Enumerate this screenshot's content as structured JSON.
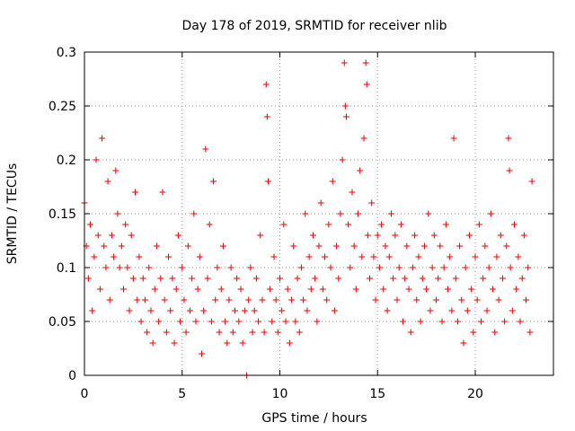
{
  "chart_data": {
    "type": "scatter",
    "title": "Day 178 of 2019, SRMTID for receiver nlib",
    "xlabel": "GPS time / hours",
    "ylabel": "SRMTID / TECUs",
    "xlim": [
      0,
      24
    ],
    "ylim": [
      0,
      0.3
    ],
    "x_ticks": [
      0,
      5,
      10,
      15,
      20
    ],
    "x_tick_labels": [
      "0",
      "5",
      "10",
      "15",
      "20"
    ],
    "y_ticks": [
      0,
      0.05,
      0.1,
      0.15,
      0.2,
      0.25,
      0.3
    ],
    "y_tick_labels": [
      "0",
      "0.05",
      "0.1",
      "0.15",
      "0.2",
      "0.25",
      "0.3"
    ],
    "grid": true,
    "marker": "plus",
    "marker_color": "#ee0000",
    "series": [
      {
        "name": "SRMTID",
        "points": [
          [
            0.0,
            0.16
          ],
          [
            0.1,
            0.12
          ],
          [
            0.2,
            0.09
          ],
          [
            0.3,
            0.14
          ],
          [
            0.4,
            0.06
          ],
          [
            0.5,
            0.11
          ],
          [
            0.6,
            0.2
          ],
          [
            0.7,
            0.13
          ],
          [
            0.8,
            0.08
          ],
          [
            0.9,
            0.22
          ],
          [
            1.0,
            0.12
          ],
          [
            1.1,
            0.1
          ],
          [
            1.2,
            0.18
          ],
          [
            1.3,
            0.07
          ],
          [
            1.4,
            0.13
          ],
          [
            1.5,
            0.11
          ],
          [
            1.6,
            0.19
          ],
          [
            1.7,
            0.15
          ],
          [
            1.8,
            0.1
          ],
          [
            1.9,
            0.12
          ],
          [
            2.0,
            0.08
          ],
          [
            2.1,
            0.14
          ],
          [
            2.2,
            0.1
          ],
          [
            2.3,
            0.06
          ],
          [
            2.4,
            0.13
          ],
          [
            2.5,
            0.09
          ],
          [
            2.6,
            0.17
          ],
          [
            2.7,
            0.07
          ],
          [
            2.8,
            0.11
          ],
          [
            2.9,
            0.05
          ],
          [
            3.0,
            0.09
          ],
          [
            3.1,
            0.07
          ],
          [
            3.2,
            0.04
          ],
          [
            3.3,
            0.1
          ],
          [
            3.4,
            0.06
          ],
          [
            3.5,
            0.03
          ],
          [
            3.6,
            0.08
          ],
          [
            3.7,
            0.12
          ],
          [
            3.8,
            0.05
          ],
          [
            3.9,
            0.09
          ],
          [
            4.0,
            0.17
          ],
          [
            4.1,
            0.07
          ],
          [
            4.2,
            0.04
          ],
          [
            4.3,
            0.11
          ],
          [
            4.4,
            0.06
          ],
          [
            4.5,
            0.09
          ],
          [
            4.6,
            0.03
          ],
          [
            4.7,
            0.08
          ],
          [
            4.8,
            0.13
          ],
          [
            4.9,
            0.05
          ],
          [
            5.0,
            0.1
          ],
          [
            5.1,
            0.07
          ],
          [
            5.2,
            0.04
          ],
          [
            5.3,
            0.12
          ],
          [
            5.4,
            0.06
          ],
          [
            5.5,
            0.09
          ],
          [
            5.6,
            0.15
          ],
          [
            5.7,
            0.05
          ],
          [
            5.8,
            0.08
          ],
          [
            5.9,
            0.11
          ],
          [
            6.0,
            0.02
          ],
          [
            6.1,
            0.06
          ],
          [
            6.2,
            0.21
          ],
          [
            6.3,
            0.09
          ],
          [
            6.4,
            0.14
          ],
          [
            6.5,
            0.05
          ],
          [
            6.6,
            0.18
          ],
          [
            6.7,
            0.07
          ],
          [
            6.8,
            0.1
          ],
          [
            6.9,
            0.04
          ],
          [
            7.0,
            0.08
          ],
          [
            7.1,
            0.12
          ],
          [
            7.2,
            0.05
          ],
          [
            7.3,
            0.03
          ],
          [
            7.4,
            0.07
          ],
          [
            7.5,
            0.1
          ],
          [
            7.6,
            0.04
          ],
          [
            7.7,
            0.06
          ],
          [
            7.8,
            0.09
          ],
          [
            7.9,
            0.05
          ],
          [
            8.0,
            0.08
          ],
          [
            8.1,
            0.03
          ],
          [
            8.2,
            0.06
          ],
          [
            8.3,
            0.0
          ],
          [
            8.4,
            0.07
          ],
          [
            8.5,
            0.1
          ],
          [
            8.6,
            0.04
          ],
          [
            8.7,
            0.06
          ],
          [
            8.8,
            0.09
          ],
          [
            8.9,
            0.05
          ],
          [
            9.0,
            0.13
          ],
          [
            9.1,
            0.07
          ],
          [
            9.2,
            0.04
          ],
          [
            9.3,
            0.27
          ],
          [
            9.35,
            0.24
          ],
          [
            9.4,
            0.18
          ],
          [
            9.5,
            0.08
          ],
          [
            9.6,
            0.05
          ],
          [
            9.7,
            0.11
          ],
          [
            9.8,
            0.07
          ],
          [
            9.9,
            0.04
          ],
          [
            10.0,
            0.09
          ],
          [
            10.1,
            0.06
          ],
          [
            10.2,
            0.14
          ],
          [
            10.3,
            0.05
          ],
          [
            10.4,
            0.08
          ],
          [
            10.5,
            0.03
          ],
          [
            10.6,
            0.07
          ],
          [
            10.7,
            0.12
          ],
          [
            10.8,
            0.05
          ],
          [
            10.9,
            0.09
          ],
          [
            11.0,
            0.04
          ],
          [
            11.1,
            0.1
          ],
          [
            11.2,
            0.07
          ],
          [
            11.3,
            0.15
          ],
          [
            11.4,
            0.06
          ],
          [
            11.5,
            0.11
          ],
          [
            11.6,
            0.08
          ],
          [
            11.7,
            0.13
          ],
          [
            11.8,
            0.09
          ],
          [
            11.9,
            0.05
          ],
          [
            12.0,
            0.12
          ],
          [
            12.1,
            0.16
          ],
          [
            12.2,
            0.08
          ],
          [
            12.3,
            0.11
          ],
          [
            12.4,
            0.07
          ],
          [
            12.5,
            0.14
          ],
          [
            12.6,
            0.1
          ],
          [
            12.7,
            0.18
          ],
          [
            12.8,
            0.06
          ],
          [
            12.9,
            0.12
          ],
          [
            13.0,
            0.09
          ],
          [
            13.1,
            0.15
          ],
          [
            13.2,
            0.2
          ],
          [
            13.3,
            0.29
          ],
          [
            13.35,
            0.25
          ],
          [
            13.4,
            0.24
          ],
          [
            13.5,
            0.14
          ],
          [
            13.6,
            0.1
          ],
          [
            13.7,
            0.17
          ],
          [
            13.8,
            0.12
          ],
          [
            13.9,
            0.08
          ],
          [
            14.0,
            0.15
          ],
          [
            14.1,
            0.19
          ],
          [
            14.2,
            0.11
          ],
          [
            14.3,
            0.22
          ],
          [
            14.4,
            0.29
          ],
          [
            14.45,
            0.27
          ],
          [
            14.5,
            0.13
          ],
          [
            14.6,
            0.09
          ],
          [
            14.7,
            0.16
          ],
          [
            14.8,
            0.11
          ],
          [
            14.9,
            0.07
          ],
          [
            15.0,
            0.13
          ],
          [
            15.1,
            0.1
          ],
          [
            15.2,
            0.14
          ],
          [
            15.3,
            0.08
          ],
          [
            15.4,
            0.12
          ],
          [
            15.5,
            0.06
          ],
          [
            15.6,
            0.11
          ],
          [
            15.7,
            0.15
          ],
          [
            15.8,
            0.09
          ],
          [
            15.9,
            0.13
          ],
          [
            16.0,
            0.07
          ],
          [
            16.1,
            0.1
          ],
          [
            16.2,
            0.14
          ],
          [
            16.3,
            0.05
          ],
          [
            16.4,
            0.09
          ],
          [
            16.5,
            0.12
          ],
          [
            16.6,
            0.08
          ],
          [
            16.7,
            0.04
          ],
          [
            16.8,
            0.1
          ],
          [
            16.9,
            0.13
          ],
          [
            17.0,
            0.07
          ],
          [
            17.1,
            0.11
          ],
          [
            17.2,
            0.05
          ],
          [
            17.3,
            0.09
          ],
          [
            17.4,
            0.12
          ],
          [
            17.5,
            0.08
          ],
          [
            17.6,
            0.15
          ],
          [
            17.7,
            0.06
          ],
          [
            17.8,
            0.1
          ],
          [
            17.9,
            0.13
          ],
          [
            18.0,
            0.07
          ],
          [
            18.1,
            0.09
          ],
          [
            18.2,
            0.12
          ],
          [
            18.3,
            0.05
          ],
          [
            18.4,
            0.1
          ],
          [
            18.5,
            0.14
          ],
          [
            18.6,
            0.08
          ],
          [
            18.7,
            0.11
          ],
          [
            18.8,
            0.06
          ],
          [
            18.9,
            0.22
          ],
          [
            19.0,
            0.09
          ],
          [
            19.1,
            0.05
          ],
          [
            19.2,
            0.12
          ],
          [
            19.3,
            0.07
          ],
          [
            19.4,
            0.03
          ],
          [
            19.5,
            0.1
          ],
          [
            19.6,
            0.06
          ],
          [
            19.7,
            0.13
          ],
          [
            19.8,
            0.08
          ],
          [
            19.9,
            0.04
          ],
          [
            20.0,
            0.11
          ],
          [
            20.1,
            0.07
          ],
          [
            20.2,
            0.14
          ],
          [
            20.3,
            0.05
          ],
          [
            20.4,
            0.09
          ],
          [
            20.5,
            0.12
          ],
          [
            20.6,
            0.06
          ],
          [
            20.7,
            0.1
          ],
          [
            20.8,
            0.15
          ],
          [
            20.9,
            0.08
          ],
          [
            21.0,
            0.04
          ],
          [
            21.1,
            0.11
          ],
          [
            21.2,
            0.07
          ],
          [
            21.3,
            0.13
          ],
          [
            21.4,
            0.09
          ],
          [
            21.5,
            0.05
          ],
          [
            21.6,
            0.12
          ],
          [
            21.7,
            0.22
          ],
          [
            21.75,
            0.19
          ],
          [
            21.8,
            0.1
          ],
          [
            21.9,
            0.06
          ],
          [
            22.0,
            0.14
          ],
          [
            22.1,
            0.08
          ],
          [
            22.2,
            0.11
          ],
          [
            22.3,
            0.05
          ],
          [
            22.4,
            0.09
          ],
          [
            22.5,
            0.13
          ],
          [
            22.6,
            0.07
          ],
          [
            22.7,
            0.1
          ],
          [
            22.8,
            0.04
          ],
          [
            22.9,
            0.18
          ]
        ]
      }
    ]
  }
}
